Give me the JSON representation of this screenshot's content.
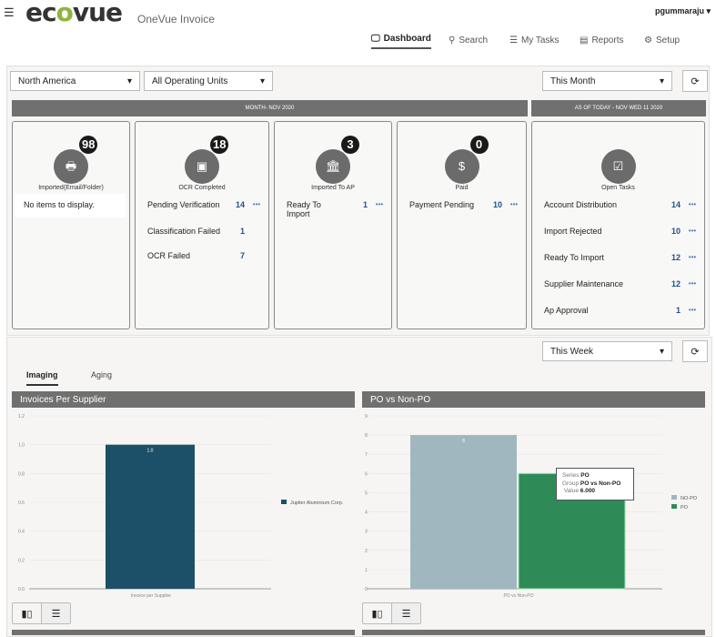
{
  "header": {
    "app_name": "OneVue Invoice",
    "logo": "ecovue",
    "user": "pgummaraju",
    "nav": [
      {
        "label": "Dashboard",
        "icon": "presentation-icon"
      },
      {
        "label": "Search",
        "icon": "search-icon"
      },
      {
        "label": "My Tasks",
        "icon": "tasks-icon"
      },
      {
        "label": "Reports",
        "icon": "report-icon"
      },
      {
        "label": "Setup",
        "icon": "gear-icon"
      }
    ]
  },
  "filters": {
    "region": "North America",
    "operating_unit": "All Operating Units",
    "period": "This Month"
  },
  "banners": {
    "month": "MONTH- NOV 2020",
    "today": "AS OF TODAY - NOV WED 11 2020"
  },
  "cards": [
    {
      "label": "Imported(Email/Folder)",
      "count": "98",
      "empty": "No items to display.",
      "rows": []
    },
    {
      "label": "OCR Completed",
      "count": "18",
      "rows": [
        {
          "label": "Pending Verification",
          "value": "14",
          "more": "•••"
        },
        {
          "label": "Classification Failed",
          "value": "1"
        },
        {
          "label": "OCR Failed",
          "value": "7"
        }
      ]
    },
    {
      "label": "Imported To AP",
      "count": "3",
      "rows": [
        {
          "label": "Ready To Import",
          "value": "1",
          "more": "•••"
        }
      ]
    },
    {
      "label": "Paid",
      "count": "0",
      "rows": [
        {
          "label": "Payment Pending",
          "value": "10",
          "more": "•••"
        }
      ]
    },
    {
      "label": "Open Tasks",
      "rows": [
        {
          "label": "Account Distribution",
          "value": "14",
          "more": "•••"
        },
        {
          "label": "Import Rejected",
          "value": "10",
          "more": "•••"
        },
        {
          "label": "Ready To Import",
          "value": "12",
          "more": "•••"
        },
        {
          "label": "Supplier Maintenance",
          "value": "12",
          "more": "•••"
        },
        {
          "label": "Ap Approval",
          "value": "1",
          "more": "•••"
        }
      ]
    }
  ],
  "section2": {
    "period": "This Week",
    "tabs": [
      "Imaging",
      "Aging"
    ],
    "active_tab": "Imaging"
  },
  "chart_data": [
    {
      "type": "bar",
      "title": "Invoices Per Supplier",
      "categories": [
        "Invoice per Supplier"
      ],
      "ylim": [
        0,
        1.2
      ],
      "yticks": [
        "0.0",
        "0.2",
        "0.4",
        "0.6",
        "0.8",
        "1.0",
        "1.2"
      ],
      "series": [
        {
          "name": "Jupiter Aluminium Corp.",
          "values": [
            1.0
          ],
          "label": "1.0",
          "color": "#1b5068"
        }
      ],
      "legend": "right",
      "grid": true
    },
    {
      "type": "bar",
      "title": "PO vs Non-PO",
      "categories": [
        "PO vs Non-PO"
      ],
      "ylim": [
        0,
        9
      ],
      "yticks": [
        "0",
        "1",
        "2",
        "3",
        "4",
        "5",
        "6",
        "7",
        "8",
        "9"
      ],
      "series": [
        {
          "name": "NO-PO",
          "values": [
            8
          ],
          "label": "8",
          "color": "#a0b7c0"
        },
        {
          "name": "PO",
          "values": [
            6
          ],
          "color": "#2e8b57"
        }
      ],
      "legend": "right",
      "grid": true,
      "tooltip": {
        "series_label": "Series",
        "series": "PO",
        "group_label": "Group",
        "group": "PO vs Non-PO",
        "value_label": "Value",
        "value": "6.000"
      }
    }
  ]
}
